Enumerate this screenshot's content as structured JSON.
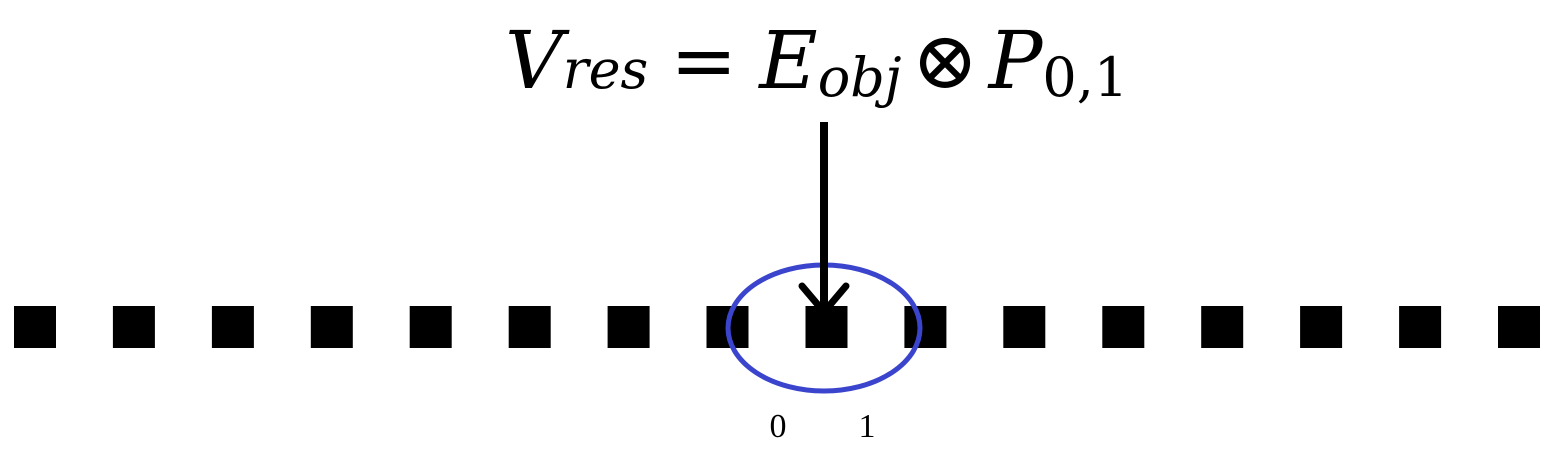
{
  "formula": {
    "lhs_base": "V",
    "lhs_sub": "res",
    "equals": "=",
    "rhs1_base": "E",
    "rhs1_sub": "obj",
    "operator": "⊗",
    "rhs2_base": "P",
    "rhs2_sub": "0,1"
  },
  "cells": {
    "count": 16,
    "color": "#000000",
    "highlighted": [
      8,
      9
    ]
  },
  "highlight": {
    "color": "#3a44cc"
  },
  "arrow": {
    "color": "#000000"
  },
  "index_labels": [
    "0",
    "1"
  ]
}
